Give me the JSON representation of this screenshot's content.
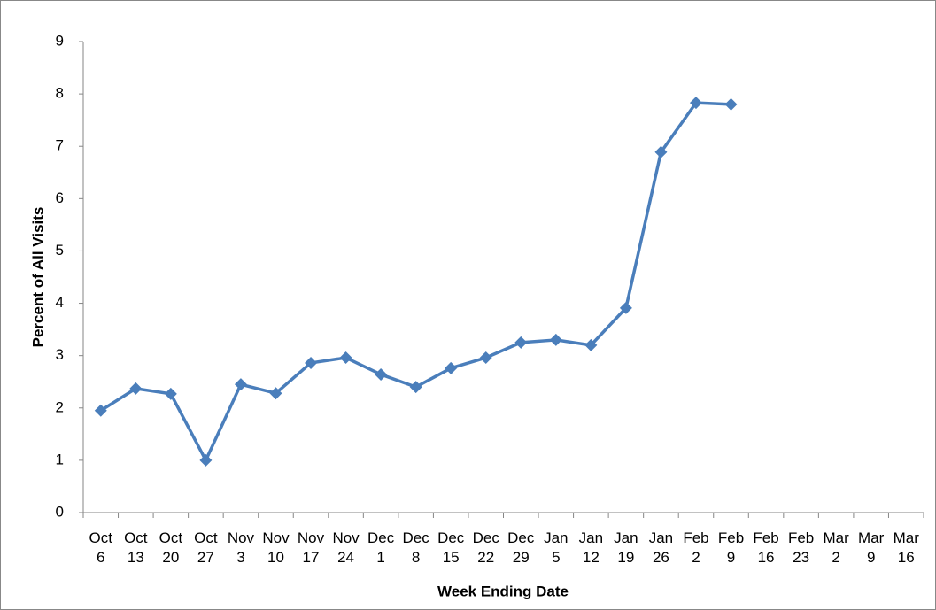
{
  "chart_data": {
    "type": "line",
    "y_label": "Percent of All Visits",
    "x_label": "Week Ending Date",
    "categories": [
      "Oct 6",
      "Oct 13",
      "Oct 20",
      "Oct 27",
      "Nov 3",
      "Nov 10",
      "Nov 17",
      "Nov 24",
      "Dec 1",
      "Dec 8",
      "Dec 15",
      "Dec 22",
      "Dec 29",
      "Jan 5",
      "Jan 12",
      "Jan 19",
      "Jan 26",
      "Feb 2",
      "Feb 9",
      "Feb 16",
      "Feb 23",
      "Mar 2",
      "Mar 9",
      "Mar 16"
    ],
    "values": [
      1.95,
      2.37,
      2.27,
      1.0,
      2.45,
      2.28,
      2.86,
      2.96,
      2.64,
      2.4,
      2.76,
      2.96,
      3.25,
      3.3,
      3.2,
      3.91,
      6.89,
      7.83,
      7.8,
      null,
      null,
      null,
      null,
      null
    ],
    "color": "#4a7ebb",
    "ylim": [
      0,
      9
    ],
    "yticks": [
      0,
      1,
      2,
      3,
      4,
      5,
      6,
      7,
      8,
      9
    ],
    "grid": false
  }
}
